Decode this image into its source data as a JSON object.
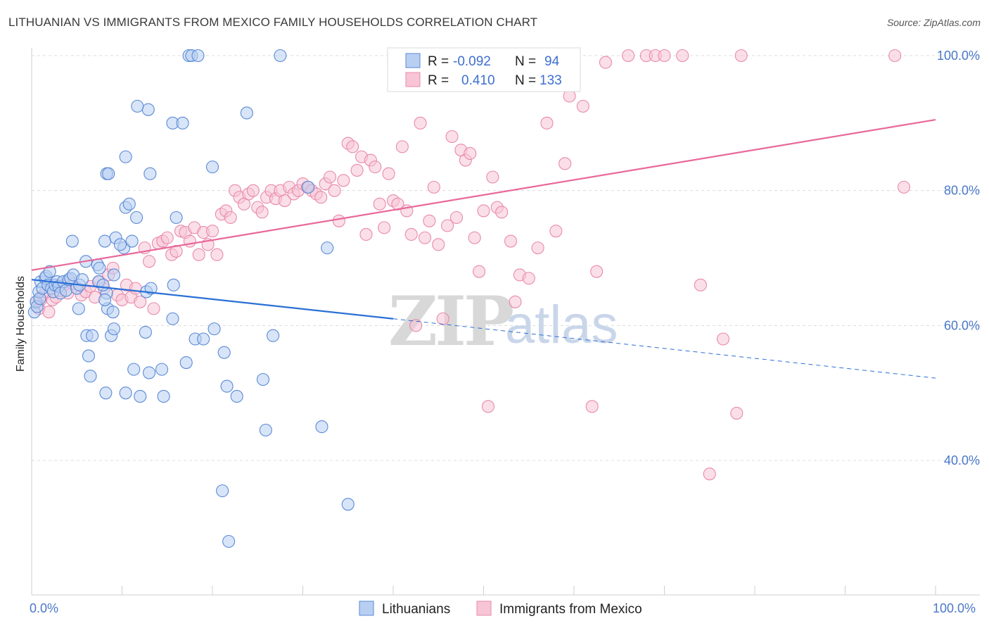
{
  "header": {
    "title": "LITHUANIAN VS IMMIGRANTS FROM MEXICO FAMILY HOUSEHOLDS CORRELATION CHART",
    "source": "Source: ZipAtlas.com"
  },
  "watermark": {
    "zip": "ZIP",
    "atlas": "atlas"
  },
  "colors": {
    "blue_fill": "#b8cff2",
    "blue_stroke": "#5b8ad6",
    "blue_line": "#2a6fd6",
    "pink_fill": "#f7c5d5",
    "pink_stroke": "#e88aab",
    "pink_line": "#e8689a",
    "axis_text": "#4a78c8"
  },
  "legend": {
    "rows": [
      {
        "r_label": "R =",
        "r_value": "-0.092",
        "n_label": "N =",
        "n_value": "94"
      },
      {
        "r_label": "R =",
        "r_value": "0.410",
        "n_label": "N =",
        "n_value": "133"
      }
    ]
  },
  "chart_data": {
    "type": "scatter",
    "title": "LITHUANIAN VS IMMIGRANTS FROM MEXICO FAMILY HOUSEHOLDS CORRELATION CHART",
    "xlabel": "",
    "ylabel": "Family Households",
    "xlim": [
      0,
      100
    ],
    "ylim": [
      20,
      103
    ],
    "x_tick_labels": [
      "0.0%",
      "100.0%"
    ],
    "y_ticks": [
      40,
      60,
      80,
      100
    ],
    "y_tick_labels": [
      "40.0%",
      "60.0%",
      "80.0%",
      "100.0%"
    ],
    "grid": true,
    "legend_position": "top-center",
    "series": [
      {
        "name": "Lithuanians",
        "r": -0.092,
        "n": 94,
        "trend": {
          "x0": 0,
          "y0": 66.8,
          "x1": 40,
          "y1": 61.0,
          "dashed_to_x": 100,
          "dashed_to_y": 52.2
        },
        "points": [
          [
            0.3,
            62
          ],
          [
            0.5,
            63.5
          ],
          [
            0.6,
            62.8
          ],
          [
            0.8,
            65
          ],
          [
            0.9,
            64
          ],
          [
            1.0,
            66.5
          ],
          [
            1.2,
            65.5
          ],
          [
            1.5,
            67
          ],
          [
            1.6,
            67.3
          ],
          [
            1.8,
            66
          ],
          [
            2.0,
            68
          ],
          [
            2.2,
            65.5
          ],
          [
            2.4,
            65
          ],
          [
            2.6,
            66
          ],
          [
            2.8,
            66.5
          ],
          [
            3.0,
            65.8
          ],
          [
            3.2,
            64.8
          ],
          [
            3.5,
            66.5
          ],
          [
            3.8,
            65.2
          ],
          [
            4.1,
            66.8
          ],
          [
            4.3,
            67
          ],
          [
            4.6,
            67.5
          ],
          [
            5.0,
            65.5
          ],
          [
            5.3,
            66
          ],
          [
            5.6,
            66.8
          ],
          [
            4.5,
            72.5
          ],
          [
            6.0,
            69.5
          ],
          [
            7.3,
            69
          ],
          [
            7.5,
            68.5
          ],
          [
            8.3,
            64.8
          ],
          [
            8.1,
            72.5
          ],
          [
            7.4,
            66.5
          ],
          [
            9.1,
            67.5
          ],
          [
            9.3,
            73
          ],
          [
            10.2,
            71.5
          ],
          [
            10.4,
            77.5
          ],
          [
            10.8,
            78
          ],
          [
            11.6,
            76
          ],
          [
            8.3,
            82.5
          ],
          [
            8.5,
            82.5
          ],
          [
            13.1,
            82.5
          ],
          [
            10.4,
            85
          ],
          [
            11.1,
            72.5
          ],
          [
            12.7,
            65
          ],
          [
            13.2,
            65.5
          ],
          [
            12.6,
            59
          ],
          [
            13.0,
            53
          ],
          [
            14.4,
            53.5
          ],
          [
            14.6,
            49.5
          ],
          [
            11.3,
            53.5
          ],
          [
            10.4,
            50
          ],
          [
            12.0,
            49.5
          ],
          [
            8.2,
            50
          ],
          [
            6.5,
            52.5
          ],
          [
            6.3,
            55.5
          ],
          [
            6.1,
            58.5
          ],
          [
            6.7,
            58.5
          ],
          [
            8.8,
            58.5
          ],
          [
            8.4,
            62.5
          ],
          [
            9.1,
            59.5
          ],
          [
            15.7,
            66
          ],
          [
            15.6,
            61
          ],
          [
            15.6,
            90
          ],
          [
            16.0,
            76
          ],
          [
            17.1,
            54.5
          ],
          [
            18.1,
            58
          ],
          [
            19.0,
            58
          ],
          [
            20.2,
            59.5
          ],
          [
            21.3,
            56
          ],
          [
            21.6,
            51
          ],
          [
            22.7,
            49.5
          ],
          [
            25.6,
            52
          ],
          [
            26.7,
            58.5
          ],
          [
            25.9,
            44.5
          ],
          [
            32.1,
            45
          ],
          [
            21.1,
            35.5
          ],
          [
            21.8,
            28
          ],
          [
            35.0,
            33.5
          ],
          [
            32.7,
            71.5
          ],
          [
            30.6,
            80.5
          ],
          [
            17.4,
            100
          ],
          [
            17.7,
            100
          ],
          [
            18.4,
            100
          ],
          [
            27.5,
            100
          ],
          [
            12.9,
            92
          ],
          [
            23.8,
            91.5
          ],
          [
            16.7,
            90
          ],
          [
            20.0,
            83.5
          ],
          [
            11.7,
            92.5
          ],
          [
            9.8,
            72
          ],
          [
            7.9,
            66
          ],
          [
            8.1,
            63.8
          ],
          [
            9.0,
            62
          ],
          [
            5.2,
            62.5
          ]
        ]
      },
      {
        "name": "Immigrants from Mexico",
        "r": 0.41,
        "n": 133,
        "trend": {
          "x0": 0,
          "y0": 68.2,
          "x1": 100,
          "y1": 90.5
        },
        "points": [
          [
            0.5,
            63.5
          ],
          [
            0.8,
            62.5
          ],
          [
            1.0,
            63.8
          ],
          [
            1.3,
            64.5
          ],
          [
            1.6,
            65
          ],
          [
            1.9,
            62
          ],
          [
            2.3,
            63.8
          ],
          [
            2.7,
            64.2
          ],
          [
            3.1,
            65.2
          ],
          [
            3.6,
            66
          ],
          [
            4.0,
            64.8
          ],
          [
            4.5,
            66.2
          ],
          [
            5.0,
            65.5
          ],
          [
            5.5,
            64.5
          ],
          [
            6.0,
            65
          ],
          [
            6.5,
            65.8
          ],
          [
            7.0,
            64.2
          ],
          [
            7.5,
            66.5
          ],
          [
            8.0,
            65.5
          ],
          [
            8.5,
            67.5
          ],
          [
            9.0,
            68.5
          ],
          [
            9.5,
            64.5
          ],
          [
            10.0,
            63.8
          ],
          [
            10.5,
            66
          ],
          [
            11.0,
            64.2
          ],
          [
            11.5,
            65.5
          ],
          [
            12.0,
            63.5
          ],
          [
            12.5,
            71.5
          ],
          [
            13.0,
            69.5
          ],
          [
            13.5,
            62.5
          ],
          [
            14.0,
            72.2
          ],
          [
            14.5,
            72.5
          ],
          [
            15.0,
            73
          ],
          [
            15.5,
            70.5
          ],
          [
            16.0,
            71
          ],
          [
            16.5,
            74
          ],
          [
            17.0,
            73.8
          ],
          [
            17.5,
            72.5
          ],
          [
            18.0,
            74.5
          ],
          [
            18.5,
            70.5
          ],
          [
            19.0,
            73.8
          ],
          [
            19.5,
            72
          ],
          [
            20.0,
            74
          ],
          [
            20.5,
            70.5
          ],
          [
            21.0,
            76.5
          ],
          [
            21.5,
            77
          ],
          [
            22.0,
            76
          ],
          [
            22.5,
            80
          ],
          [
            23.0,
            79
          ],
          [
            23.5,
            78
          ],
          [
            24.0,
            79.5
          ],
          [
            24.5,
            80
          ],
          [
            25.0,
            77.5
          ],
          [
            25.5,
            76.8
          ],
          [
            26.0,
            79
          ],
          [
            26.5,
            80
          ],
          [
            27.0,
            78.8
          ],
          [
            27.5,
            80
          ],
          [
            28.0,
            78.5
          ],
          [
            28.5,
            80.5
          ],
          [
            29.0,
            79.5
          ],
          [
            29.5,
            80
          ],
          [
            30.0,
            81
          ],
          [
            30.5,
            80.5
          ],
          [
            31.0,
            80
          ],
          [
            31.5,
            79.5
          ],
          [
            32.0,
            79
          ],
          [
            32.5,
            81
          ],
          [
            33.0,
            82
          ],
          [
            33.5,
            80
          ],
          [
            34.0,
            75.5
          ],
          [
            34.5,
            81.5
          ],
          [
            35.0,
            87
          ],
          [
            35.5,
            86.5
          ],
          [
            36.0,
            83
          ],
          [
            36.5,
            85
          ],
          [
            37.0,
            73.5
          ],
          [
            37.5,
            84.5
          ],
          [
            38.0,
            83.5
          ],
          [
            38.5,
            78
          ],
          [
            39.0,
            74.5
          ],
          [
            39.5,
            82.5
          ],
          [
            40.0,
            78.5
          ],
          [
            40.5,
            78
          ],
          [
            41.0,
            86.5
          ],
          [
            41.5,
            77
          ],
          [
            42.0,
            73.5
          ],
          [
            42.5,
            60
          ],
          [
            43.0,
            90
          ],
          [
            43.5,
            73
          ],
          [
            44.0,
            75.5
          ],
          [
            44.5,
            80.5
          ],
          [
            45.0,
            72
          ],
          [
            45.5,
            61
          ],
          [
            46.0,
            74.8
          ],
          [
            46.5,
            88
          ],
          [
            47.0,
            76
          ],
          [
            47.5,
            86
          ],
          [
            48.0,
            84.5
          ],
          [
            48.5,
            85.5
          ],
          [
            49.0,
            73
          ],
          [
            49.5,
            68
          ],
          [
            50.0,
            77
          ],
          [
            50.5,
            48
          ],
          [
            51.0,
            82
          ],
          [
            51.5,
            77.5
          ],
          [
            52.0,
            76.8
          ],
          [
            53.0,
            72.5
          ],
          [
            53.5,
            63.5
          ],
          [
            54.0,
            67.5
          ],
          [
            55.0,
            67
          ],
          [
            56.0,
            71.5
          ],
          [
            57.0,
            90
          ],
          [
            58.0,
            74
          ],
          [
            59.0,
            84
          ],
          [
            59.5,
            94
          ],
          [
            60.0,
            100
          ],
          [
            61.0,
            92.5
          ],
          [
            62.0,
            48
          ],
          [
            62.5,
            68
          ],
          [
            63.5,
            99
          ],
          [
            66.0,
            100
          ],
          [
            68.0,
            100
          ],
          [
            69.0,
            100
          ],
          [
            70.0,
            100
          ],
          [
            72.0,
            100
          ],
          [
            74.0,
            66
          ],
          [
            75.0,
            38
          ],
          [
            76.5,
            58
          ],
          [
            78.0,
            47
          ],
          [
            78.5,
            100
          ],
          [
            95.5,
            100
          ],
          [
            96.5,
            80.5
          ]
        ]
      }
    ]
  },
  "bottom_legend": [
    {
      "label": "Lithuanians"
    },
    {
      "label": "Immigrants from Mexico"
    }
  ]
}
